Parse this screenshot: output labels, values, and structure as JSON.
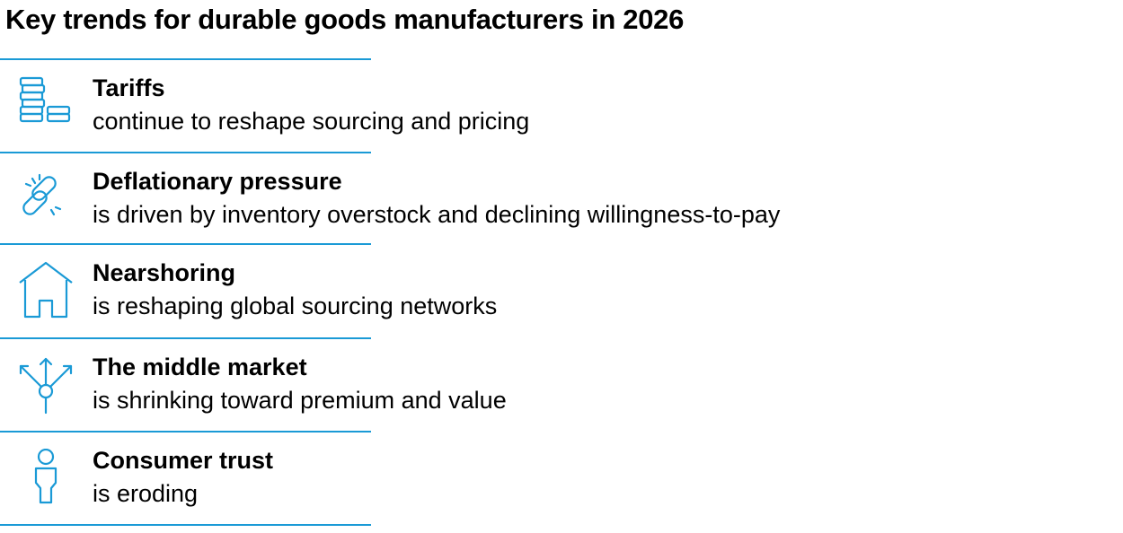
{
  "title": "Key trends for durable goods manufacturers in 2026",
  "accent_color": "#1a9ad6",
  "items": [
    {
      "icon": "coin-stacks-icon",
      "heading": "Tariffs",
      "description": "continue to reshape sourcing and pricing"
    },
    {
      "icon": "broken-link-icon",
      "heading": "Deflationary pressure",
      "description": "is driven by inventory overstock and declining willingness-to-pay"
    },
    {
      "icon": "house-icon",
      "heading": "Nearshoring",
      "description": "is reshaping global sourcing networks"
    },
    {
      "icon": "diverging-arrows-icon",
      "heading": "The middle market",
      "description": "is shrinking toward premium and value"
    },
    {
      "icon": "person-icon",
      "heading": "Consumer trust",
      "description": "is eroding"
    }
  ]
}
